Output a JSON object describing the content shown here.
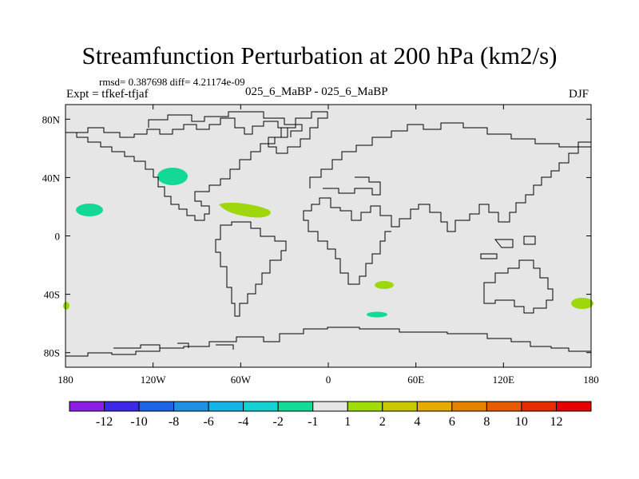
{
  "title": "Streamfunction Perturbation at 200 hPa (km2/s)",
  "stats": "rmsd= 0.387698 diff= 4.21174e-09",
  "expt": "Expt = tfkef-tfjaf",
  "center_label": "025_6_MaBP - 025_6_MaBP",
  "season": "DJF",
  "colors": {
    "ocean_fill": "#e6e6e6",
    "coast": "#000000",
    "teal_anomaly": "#13d896",
    "green_anomaly": "#9ed80c"
  },
  "map": {
    "x_ticks": [
      {
        "value": -180,
        "label": "180"
      },
      {
        "value": -120,
        "label": "120W"
      },
      {
        "value": -60,
        "label": "60W"
      },
      {
        "value": 0,
        "label": "0"
      },
      {
        "value": 60,
        "label": "60E"
      },
      {
        "value": 120,
        "label": "120E"
      },
      {
        "value": 180,
        "label": "180"
      }
    ],
    "y_ticks": [
      {
        "value": 80,
        "label": "80N"
      },
      {
        "value": 40,
        "label": "40N"
      },
      {
        "value": 0,
        "label": "0"
      },
      {
        "value": -40,
        "label": "40S"
      },
      {
        "value": -80,
        "label": "80S"
      }
    ],
    "anomalies": [
      {
        "name": "north-pacific-east",
        "lon": -105,
        "lat": 40,
        "color_key": "teal"
      },
      {
        "name": "north-pacific-west",
        "lon": -164,
        "lat": 18,
        "color_key": "teal"
      },
      {
        "name": "caribbean-atlantic",
        "lon": -70,
        "lat": 18,
        "color_key": "green"
      },
      {
        "name": "south-indian",
        "lon": 38,
        "lat": -34,
        "color_key": "green"
      },
      {
        "name": "south-ocean",
        "lon": 33,
        "lat": -54,
        "color_key": "teal"
      },
      {
        "name": "south-pacific-east",
        "lon": 174,
        "lat": -46,
        "color_key": "green"
      },
      {
        "name": "dateline-edge",
        "lon": -179,
        "lat": -48,
        "color_key": "green"
      }
    ]
  },
  "colorbar": {
    "labels": [
      "-12",
      "-10",
      "-8",
      "-6",
      "-4",
      "-2",
      "-1",
      "1",
      "2",
      "4",
      "6",
      "8",
      "10",
      "12"
    ],
    "colors": [
      "#8c1ee6",
      "#3c28e6",
      "#1e64e6",
      "#1e91e6",
      "#14b4e6",
      "#14d2d2",
      "#14dc96",
      "#e6e6e6",
      "#a0dc0a",
      "#c8c800",
      "#e6aa00",
      "#e68200",
      "#e65a00",
      "#e62d00",
      "#e60000"
    ]
  }
}
